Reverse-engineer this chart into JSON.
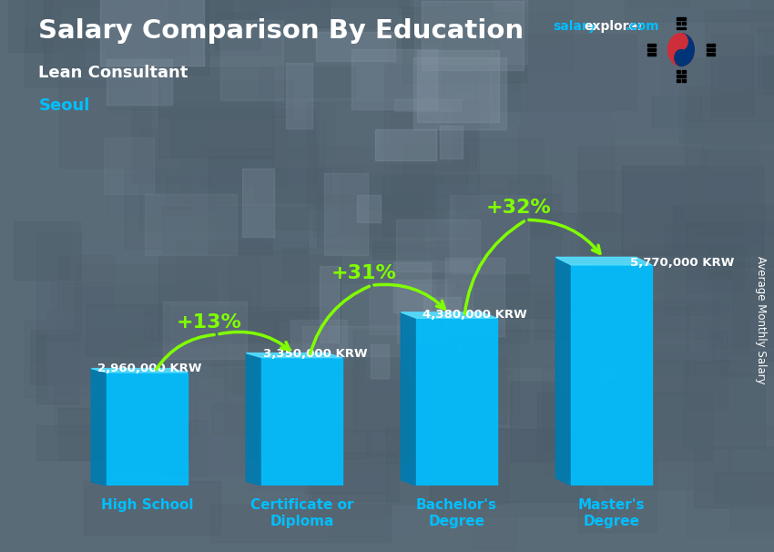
{
  "title": "Salary Comparison By Education",
  "subtitle": "Lean Consultant",
  "location": "Seoul",
  "ylabel": "Average Monthly Salary",
  "categories": [
    "High School",
    "Certificate or\nDiploma",
    "Bachelor's\nDegree",
    "Master's\nDegree"
  ],
  "values": [
    2960000,
    3350000,
    4380000,
    5770000
  ],
  "labels": [
    "2,960,000 KRW",
    "3,350,000 KRW",
    "4,380,000 KRW",
    "5,770,000 KRW"
  ],
  "pct_labels": [
    "+13%",
    "+31%",
    "+32%"
  ],
  "bar_color_face": "#00BFFF",
  "bar_color_left": "#007BAF",
  "bar_color_top": "#55DDFF",
  "bg_color": "#5a6b78",
  "title_color": "#FFFFFF",
  "subtitle_color": "#FFFFFF",
  "location_color": "#00BFFF",
  "label_color": "#FFFFFF",
  "pct_color": "#80FF00",
  "watermark_salary": "#00BFFF",
  "watermark_explorer": "#FFFFFF",
  "tick_label_color": "#00BFFF",
  "figsize": [
    8.5,
    6.06
  ],
  "dpi": 100
}
